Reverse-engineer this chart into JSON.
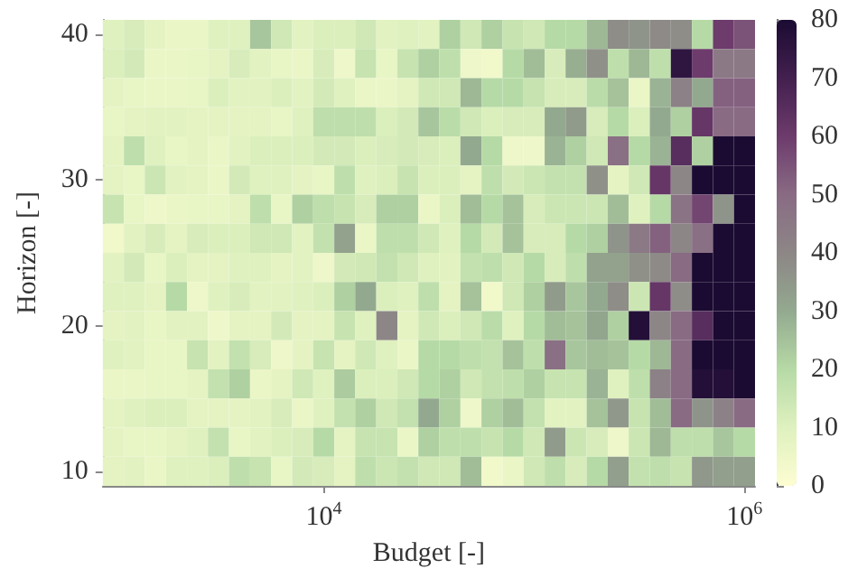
{
  "chart_data": {
    "type": "heatmap",
    "xlabel": "Budget [-]",
    "ylabel": "Horizon [-]",
    "x": [
      1000,
      1260,
      1580,
      2000,
      2510,
      3160,
      3980,
      5010,
      6310,
      7940,
      10000,
      12600,
      15800,
      20000,
      25100,
      31600,
      39800,
      50100,
      63100,
      79400,
      100000,
      126000,
      158000,
      200000,
      251000,
      316000,
      398000,
      501000,
      631000,
      794000,
      1000000
    ],
    "y": [
      40,
      38,
      36,
      34,
      32,
      30,
      28,
      26,
      24,
      22,
      20,
      18,
      16,
      14,
      12,
      10
    ],
    "log": "x",
    "xlim": [
      891,
      1122000
    ],
    "xticks": [
      {
        "value": 10000,
        "label": "10$^{4}$"
      },
      {
        "value": 1000000,
        "label": "10$^{6}$"
      }
    ],
    "ylim": [
      9,
      41
    ],
    "yticks": [
      10,
      20,
      30,
      40
    ],
    "clim": [
      0,
      80
    ],
    "cticks": [
      0,
      10,
      20,
      30,
      40,
      50,
      60,
      70,
      80
    ],
    "cells": [
      [
        10,
        12,
        8,
        6,
        6,
        10,
        10,
        24,
        14,
        9,
        11,
        11,
        14,
        9,
        10,
        9,
        22,
        14,
        22,
        16,
        14,
        20,
        20,
        27,
        38,
        36,
        39,
        38,
        20,
        60,
        55
      ],
      [
        11,
        13,
        6,
        6,
        7,
        8,
        12,
        9,
        7,
        6,
        12,
        5,
        16,
        7,
        16,
        22,
        18,
        5,
        4,
        20,
        26,
        12,
        29,
        37,
        18,
        27,
        18,
        75,
        60,
        45,
        45
      ],
      [
        8,
        7,
        6,
        6,
        7,
        11,
        9,
        9,
        11,
        9,
        13,
        10,
        6,
        6,
        8,
        14,
        14,
        27,
        20,
        20,
        16,
        12,
        12,
        19,
        25,
        6,
        28,
        42,
        30,
        52,
        52
      ],
      [
        7,
        8,
        9,
        9,
        8,
        8,
        8,
        8,
        7,
        10,
        18,
        18,
        18,
        11,
        13,
        24,
        19,
        14,
        11,
        12,
        12,
        30,
        34,
        12,
        20,
        11,
        30,
        22,
        62,
        50,
        50
      ],
      [
        8,
        18,
        10,
        7,
        8,
        6,
        9,
        11,
        11,
        11,
        13,
        13,
        11,
        12,
        13,
        12,
        11,
        30,
        20,
        5,
        5,
        28,
        22,
        14,
        48,
        20,
        28,
        65,
        22,
        80,
        80
      ],
      [
        8,
        7,
        15,
        9,
        8,
        6,
        13,
        10,
        10,
        8,
        7,
        18,
        10,
        11,
        16,
        11,
        11,
        8,
        18,
        13,
        15,
        17,
        17,
        37,
        8,
        14,
        62,
        40,
        80,
        80,
        80
      ],
      [
        16,
        7,
        5,
        6,
        7,
        7,
        8,
        18,
        7,
        22,
        18,
        16,
        12,
        22,
        22,
        6,
        11,
        26,
        20,
        25,
        12,
        15,
        15,
        15,
        26,
        10,
        20,
        47,
        58,
        36,
        80
      ],
      [
        4,
        9,
        12,
        8,
        12,
        11,
        11,
        14,
        14,
        9,
        17,
        32,
        6,
        18,
        18,
        14,
        10,
        20,
        13,
        25,
        12,
        12,
        20,
        22,
        36,
        45,
        52,
        40,
        48,
        80,
        80
      ],
      [
        9,
        13,
        7,
        11,
        8,
        8,
        10,
        10,
        8,
        9,
        5,
        13,
        14,
        17,
        14,
        10,
        9,
        17,
        18,
        14,
        20,
        12,
        18,
        32,
        32,
        37,
        39,
        50,
        80,
        80,
        80
      ],
      [
        10,
        10,
        8,
        20,
        5,
        10,
        12,
        9,
        9,
        10,
        11,
        22,
        30,
        11,
        10,
        18,
        8,
        25,
        4,
        14,
        22,
        34,
        24,
        30,
        38,
        15,
        62,
        38,
        80,
        80,
        80
      ],
      [
        8,
        9,
        7,
        9,
        9,
        5,
        8,
        8,
        13,
        8,
        8,
        16,
        10,
        40,
        8,
        14,
        11,
        14,
        19,
        10,
        20,
        26,
        25,
        31,
        22,
        78,
        40,
        50,
        65,
        80,
        80
      ],
      [
        10,
        9,
        7,
        7,
        16,
        9,
        17,
        12,
        5,
        8,
        16,
        8,
        14,
        10,
        6,
        20,
        20,
        18,
        17,
        25,
        18,
        48,
        24,
        26,
        25,
        20,
        27,
        50,
        80,
        80,
        80
      ],
      [
        6,
        6,
        7,
        7,
        8,
        17,
        22,
        6,
        8,
        14,
        10,
        23,
        11,
        11,
        14,
        20,
        22,
        14,
        17,
        18,
        22,
        16,
        16,
        28,
        10,
        18,
        42,
        50,
        78,
        78,
        80
      ],
      [
        8,
        10,
        11,
        11,
        8,
        8,
        8,
        9,
        12,
        6,
        10,
        17,
        22,
        14,
        17,
        30,
        22,
        5,
        22,
        26,
        17,
        9,
        9,
        25,
        35,
        16,
        26,
        50,
        36,
        42,
        50
      ],
      [
        8,
        7,
        7,
        8,
        10,
        17,
        7,
        9,
        11,
        12,
        20,
        8,
        16,
        16,
        6,
        22,
        18,
        18,
        16,
        20,
        14,
        34,
        15,
        12,
        5,
        15,
        27,
        18,
        18,
        24,
        20
      ],
      [
        8,
        9,
        6,
        10,
        10,
        11,
        18,
        16,
        7,
        13,
        12,
        8,
        18,
        15,
        17,
        14,
        14,
        26,
        4,
        6,
        14,
        18,
        12,
        20,
        33,
        17,
        18,
        16,
        35,
        33,
        33
      ]
    ]
  }
}
